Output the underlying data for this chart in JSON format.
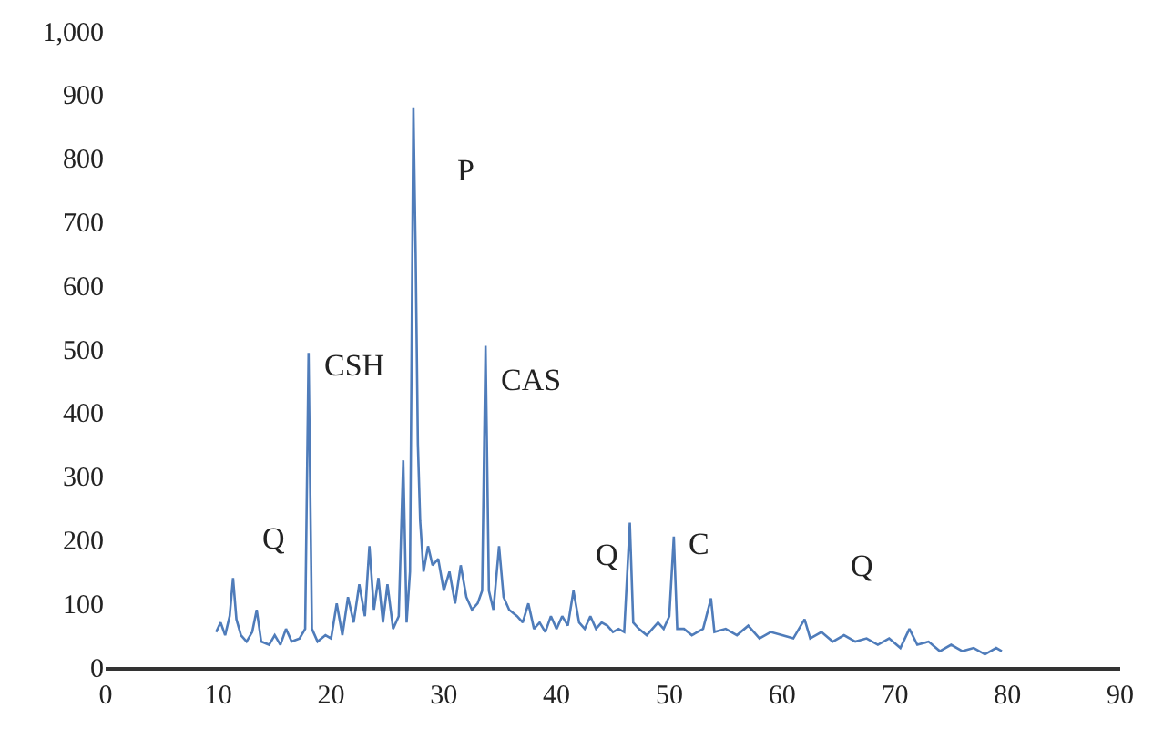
{
  "chart_data": {
    "type": "line",
    "x": [
      9.8,
      10.2,
      10.6,
      11.0,
      11.3,
      11.6,
      12.0,
      12.5,
      13.0,
      13.4,
      13.8,
      14.5,
      15.0,
      15.5,
      16.0,
      16.5,
      17.2,
      17.7,
      18.0,
      18.3,
      18.8,
      19.5,
      20.0,
      20.5,
      21.0,
      21.5,
      22.0,
      22.5,
      23.0,
      23.4,
      23.8,
      24.2,
      24.6,
      25.0,
      25.5,
      26.0,
      26.4,
      26.7,
      27.0,
      27.3,
      27.5,
      27.7,
      27.9,
      28.2,
      28.6,
      29.0,
      29.5,
      30.0,
      30.5,
      31.0,
      31.5,
      32.0,
      32.5,
      33.0,
      33.4,
      33.7,
      34.0,
      34.4,
      34.9,
      35.3,
      35.8,
      36.5,
      37.0,
      37.5,
      38.0,
      38.5,
      39.0,
      39.5,
      40.0,
      40.5,
      41.0,
      41.5,
      42.0,
      42.5,
      43.0,
      43.5,
      44.0,
      44.5,
      45.0,
      45.5,
      46.0,
      46.5,
      46.8,
      47.3,
      48.0,
      48.5,
      49.0,
      49.5,
      50.0,
      50.4,
      50.7,
      51.3,
      52.0,
      53.0,
      53.7,
      54.0,
      55.0,
      56.0,
      57.0,
      58.0,
      59.0,
      60.0,
      61.0,
      62.0,
      62.5,
      63.5,
      64.5,
      65.5,
      66.5,
      67.5,
      68.5,
      69.5,
      70.5,
      71.3,
      72.0,
      73.0,
      74.0,
      75.0,
      76.0,
      77.0,
      78.0,
      79.0,
      79.5
    ],
    "series": [
      {
        "color": "#4f7cba",
        "values": [
          55,
          70,
          50,
          80,
          140,
          75,
          50,
          40,
          55,
          90,
          40,
          35,
          50,
          35,
          60,
          40,
          45,
          60,
          494,
          60,
          40,
          50,
          45,
          100,
          50,
          110,
          70,
          130,
          80,
          190,
          90,
          140,
          70,
          130,
          60,
          80,
          325,
          70,
          150,
          880,
          650,
          350,
          230,
          150,
          190,
          160,
          170,
          120,
          150,
          100,
          160,
          110,
          90,
          100,
          120,
          505,
          120,
          90,
          190,
          110,
          90,
          80,
          70,
          100,
          60,
          70,
          55,
          80,
          60,
          80,
          65,
          120,
          70,
          60,
          80,
          60,
          70,
          65,
          55,
          60,
          55,
          227,
          70,
          60,
          50,
          60,
          70,
          60,
          80,
          205,
          60,
          60,
          50,
          60,
          108,
          55,
          60,
          50,
          65,
          45,
          55,
          50,
          45,
          75,
          45,
          55,
          40,
          50,
          40,
          45,
          35,
          45,
          30,
          60,
          35,
          40,
          25,
          35,
          25,
          30,
          20,
          30,
          25
        ]
      }
    ],
    "xlim": [
      0,
      90
    ],
    "xticks": [
      0,
      10,
      20,
      30,
      40,
      50,
      60,
      70,
      80,
      90
    ],
    "ylim": [
      0,
      1000
    ],
    "yticks": [
      0,
      100,
      200,
      300,
      400,
      500,
      600,
      700,
      800,
      {
        "value": 1000,
        "label": "1,000"
      },
      900
    ],
    "legend": false,
    "marker": "none",
    "line_style": "solid",
    "annotations": [
      {
        "text": "Q",
        "x": 13.4,
        "y": 90
      },
      {
        "text": "CSH",
        "x": 18.0,
        "y": 494
      },
      {
        "text": "P",
        "x": 27.3,
        "y": 880
      },
      {
        "text": "CAS",
        "x": 33.7,
        "y": 505
      },
      {
        "text": "Q",
        "x": 46.5,
        "y": 227
      },
      {
        "text": "C",
        "x": 50.4,
        "y": 205
      },
      {
        "text": "Q",
        "x": 67.5,
        "y": 45
      }
    ]
  }
}
